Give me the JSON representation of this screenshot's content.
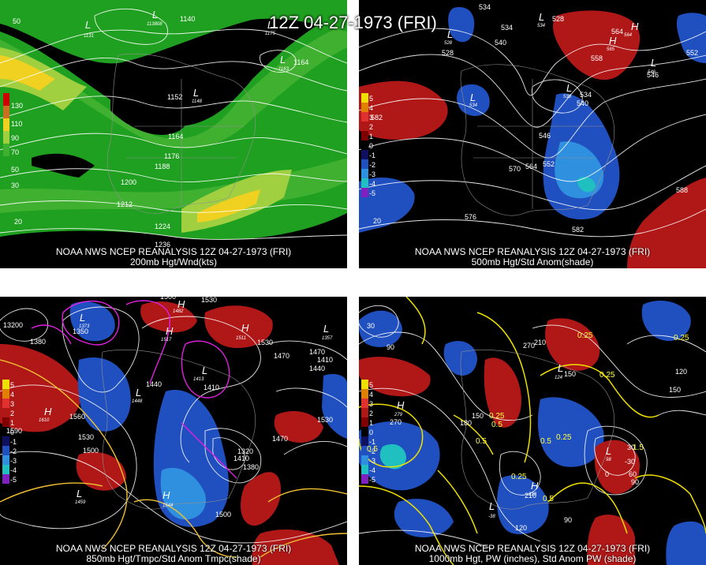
{
  "title": "12Z 04-27-1973 (FRI)",
  "panels": [
    {
      "id": "p1",
      "source": "NOAA NWS NCEP REANALYSIS 12Z 04-27-1973 (FRI)",
      "subtitle": "200mb Hgt/Wnd(kts)",
      "legend": [
        "130",
        "110",
        "90",
        "70",
        "50",
        "30"
      ],
      "legend_colors": [
        "#d00000",
        "#c87020",
        "#f0d020",
        "#a0d040",
        "#40b030",
        "#20a020"
      ],
      "contour_labels": [
        "1140",
        "1164",
        "1152",
        "1164",
        "1176",
        "1188",
        "1200",
        "1212",
        "1224",
        "1236",
        "50",
        "20"
      ],
      "centers": [
        {
          "sym": "L",
          "value": "1131"
        },
        {
          "sym": "L",
          "value": "113808"
        },
        {
          "sym": "L",
          "value": "1175"
        },
        {
          "sym": "L",
          "value": "1163"
        },
        {
          "sym": "L",
          "value": "1148"
        }
      ]
    },
    {
      "id": "p2",
      "source": "NOAA NWS NCEP REANALYSIS 12Z 04-27-1973 (FRI)",
      "subtitle": "500mb Hgt/Std Anom(shade)",
      "legend": [
        "5",
        "4",
        "3",
        "2",
        "1",
        "0",
        "-1",
        "-2",
        "-3",
        "-4",
        "-5"
      ],
      "legend_colors": [
        "#f0e000",
        "#e08000",
        "#e03030",
        "#b01818",
        "#800000",
        "#000000",
        "#101060",
        "#2050c0",
        "#3090e0",
        "#20c0c0",
        "#8020c0"
      ],
      "contour_labels": [
        "534",
        "528",
        "540",
        "534",
        "528",
        "564",
        "558",
        "552",
        "546",
        "534",
        "540",
        "582",
        "546",
        "570",
        "564",
        "552",
        "576",
        "582",
        "588",
        "20"
      ],
      "centers": [
        {
          "sym": "L",
          "value": "528"
        },
        {
          "sym": "L",
          "value": "534"
        },
        {
          "sym": "L",
          "value": "534"
        },
        {
          "sym": "H",
          "value": "564"
        },
        {
          "sym": "H",
          "value": "565"
        },
        {
          "sym": "L",
          "value": "546"
        },
        {
          "sym": "L",
          "value": "538"
        }
      ]
    },
    {
      "id": "p3",
      "source": "NOAA NWS NCEP REANALYSIS 12Z 04-27-1973 (FRI)",
      "subtitle": "850mb Hgt/Tmpc/Std Anom Tmpc(shade)",
      "legend": [
        "5",
        "4",
        "3",
        "2",
        "1",
        "0",
        "-1",
        "-2",
        "-3",
        "-4",
        "-5"
      ],
      "legend_colors": [
        "#f0e000",
        "#e08000",
        "#e03030",
        "#b01818",
        "#800000",
        "#000000",
        "#101060",
        "#2050c0",
        "#3090e0",
        "#20c0c0",
        "#8020c0"
      ],
      "contour_labels": [
        "13200",
        "1380",
        "1350",
        "1500",
        "1530",
        "1530",
        "1470",
        "1410",
        "1440",
        "1410",
        "1440",
        "1470",
        "1590",
        "1560",
        "1530",
        "1500",
        "1470",
        "1410",
        "1380",
        "1530",
        "1500",
        "1320"
      ],
      "centers": [
        {
          "sym": "L",
          "value": "1373"
        },
        {
          "sym": "H",
          "value": "1482"
        },
        {
          "sym": "H",
          "value": "1517"
        },
        {
          "sym": "H",
          "value": "1511"
        },
        {
          "sym": "L",
          "value": "1357"
        },
        {
          "sym": "L",
          "value": "1413"
        },
        {
          "sym": "L",
          "value": "1448"
        },
        {
          "sym": "H",
          "value": "1610"
        },
        {
          "sym": "H",
          "value": "1544"
        },
        {
          "sym": "L",
          "value": "1459"
        }
      ]
    },
    {
      "id": "p4",
      "source": "NOAA NWS NCEP REANALYSIS 12Z 04-27-1973 (FRI)",
      "subtitle": "1000mb Hgt, PW (inches), Std Anom PW (shade)",
      "legend": [
        "5",
        "4",
        "3",
        "2",
        "1",
        "0",
        "-1",
        "-2",
        "-3",
        "-4",
        "-5"
      ],
      "legend_colors": [
        "#f0e000",
        "#e08000",
        "#e03030",
        "#b01818",
        "#800000",
        "#000000",
        "#101060",
        "#2050c0",
        "#3090e0",
        "#20c0c0",
        "#8020c0"
      ],
      "contour_labels": [
        "30",
        "90",
        "270",
        "210",
        "0.25",
        "150",
        "0.25",
        "0.25",
        "120",
        "150",
        "270",
        "180",
        "150",
        "0.25",
        "0.5",
        "0.5",
        "0.25",
        "0.5",
        "0.25",
        "0.5",
        "210",
        "120",
        "90",
        "0",
        "30",
        "-30",
        "90",
        "0.5",
        "1.5",
        "60"
      ],
      "centers": [
        {
          "sym": "H",
          "value": "279"
        },
        {
          "sym": "L",
          "value": "124"
        },
        {
          "sym": "H",
          "value": "218"
        },
        {
          "sym": "L",
          "value": "-38"
        },
        {
          "sym": "L",
          "value": "98"
        }
      ]
    }
  ]
}
